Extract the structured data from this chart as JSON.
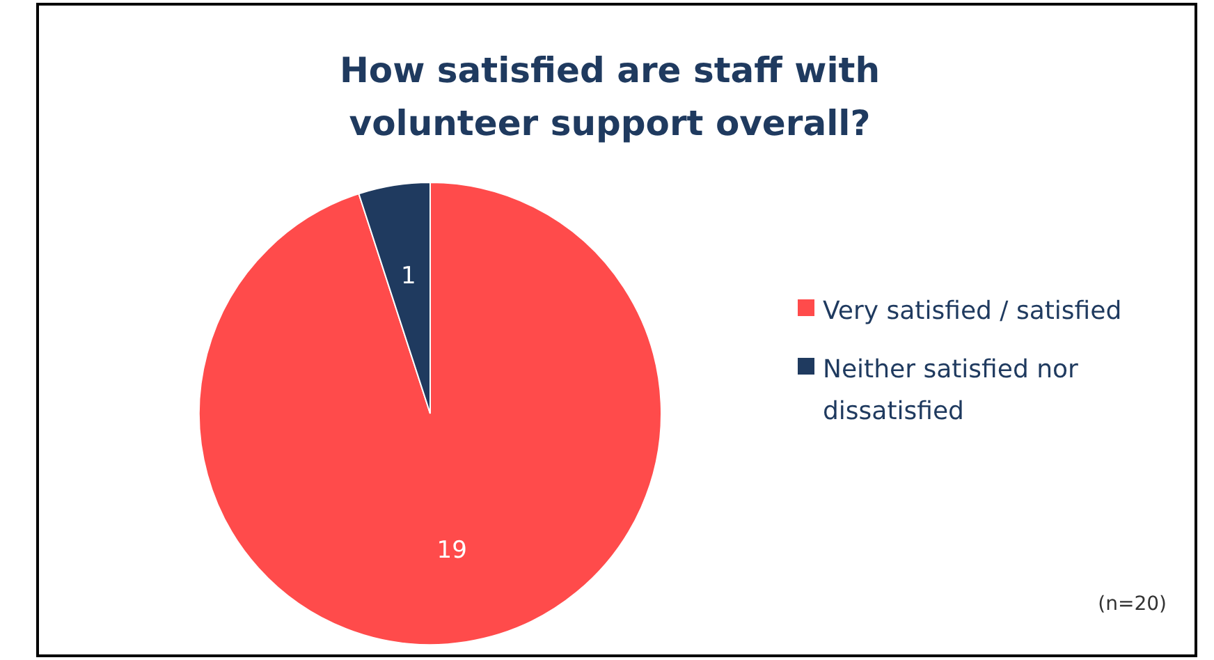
{
  "chart_data": {
    "type": "pie",
    "title": "How satisfied are staff with volunteer support overall?",
    "categories": [
      "Very satisfied / satisfied",
      "Neither satisfied nor dissatisfied"
    ],
    "values": [
      19,
      1
    ],
    "colors": [
      "#ff4b4b",
      "#1f3a5f"
    ],
    "data_labels": true,
    "legend": "right",
    "annotations": [
      "(n=20)"
    ]
  }
}
